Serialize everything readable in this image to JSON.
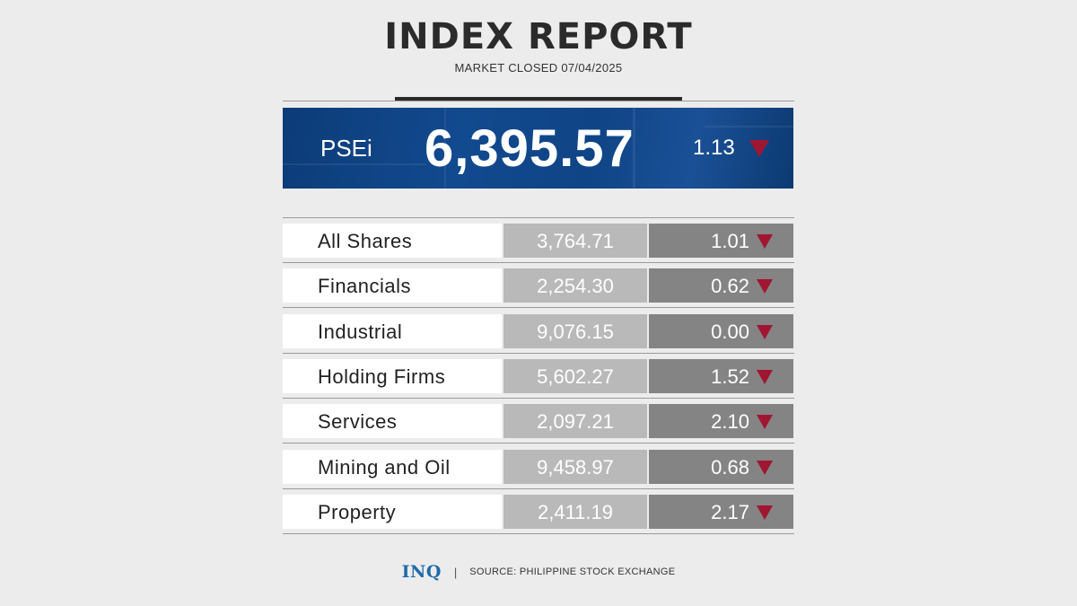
{
  "header": {
    "title": "INDEX REPORT",
    "subtitle": "MARKET CLOSED 07/04/2025"
  },
  "psei": {
    "label": "PSEi",
    "value": "6,395.57",
    "change": "1.13",
    "direction": "down"
  },
  "indices": [
    {
      "name": "All Shares",
      "value": "3,764.71",
      "change": "1.01",
      "direction": "down"
    },
    {
      "name": "Financials",
      "value": "2,254.30",
      "change": "0.62",
      "direction": "down"
    },
    {
      "name": "Industrial",
      "value": "9,076.15",
      "change": "0.00",
      "direction": "down"
    },
    {
      "name": "Holding Firms",
      "value": "5,602.27",
      "change": "1.52",
      "direction": "down"
    },
    {
      "name": "Services",
      "value": "2,097.21",
      "change": "2.10",
      "direction": "down"
    },
    {
      "name": "Mining and Oil",
      "value": "9,458.97",
      "change": "0.68",
      "direction": "down"
    },
    {
      "name": "Property",
      "value": "2,411.19",
      "change": "2.17",
      "direction": "down"
    }
  ],
  "footer": {
    "logo": "INQ",
    "separator": "|",
    "source": "SOURCE: PHILIPPINE STOCK EXCHANGE"
  },
  "colors": {
    "down_arrow": "#a01632",
    "banner_blue": "#124a8f",
    "value_cell": "#b9b9b9",
    "change_cell": "#848484",
    "logo": "#1f6aa8"
  }
}
